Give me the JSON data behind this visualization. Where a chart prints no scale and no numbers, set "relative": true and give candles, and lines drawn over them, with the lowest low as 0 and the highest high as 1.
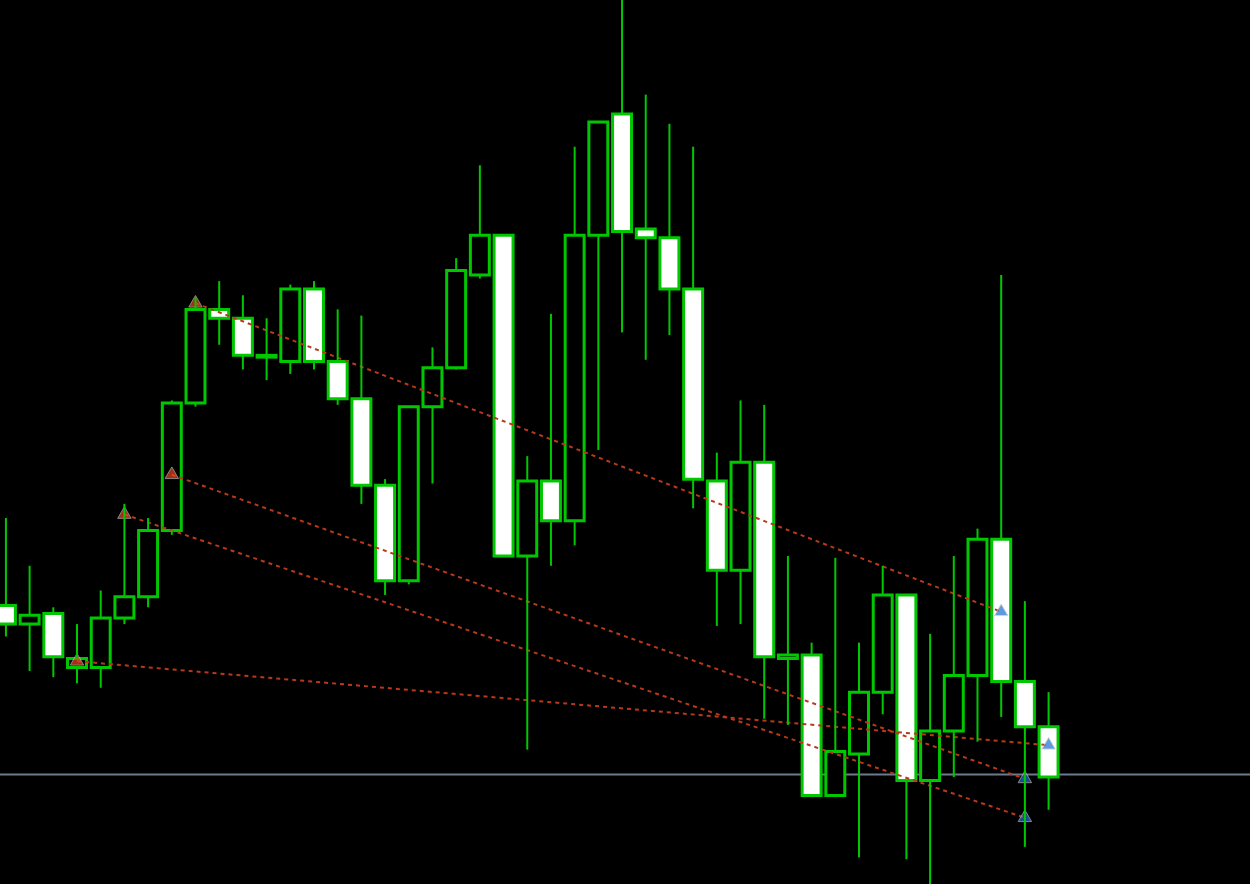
{
  "chart_data": {
    "type": "candlestick",
    "relative": true,
    "categories": [
      null,
      null,
      null,
      null,
      null,
      null,
      null,
      null,
      null,
      null,
      null,
      null,
      null,
      null,
      null,
      null,
      null,
      null,
      null,
      null,
      null,
      null,
      null,
      null,
      null,
      null,
      null,
      null,
      null,
      null,
      null,
      null,
      null,
      null,
      null,
      null,
      null,
      null,
      null,
      null,
      null,
      null,
      null,
      null,
      null
    ],
    "ohlc": [
      [
        0.315,
        0.414,
        0.28,
        0.294
      ],
      [
        0.294,
        0.36,
        0.241,
        0.304
      ],
      [
        0.306,
        0.313,
        0.234,
        0.257
      ],
      [
        0.245,
        0.294,
        0.227,
        0.255
      ],
      [
        0.245,
        0.332,
        0.222,
        0.301
      ],
      [
        0.301,
        0.43,
        0.294,
        0.325
      ],
      [
        0.325,
        0.414,
        0.313,
        0.4
      ],
      [
        0.4,
        0.547,
        0.395,
        0.544
      ],
      [
        0.544,
        0.664,
        0.54,
        0.65
      ],
      [
        0.65,
        0.682,
        0.61,
        0.64
      ],
      [
        0.64,
        0.666,
        0.582,
        0.598
      ],
      [
        0.596,
        0.64,
        0.57,
        0.598
      ],
      [
        0.591,
        0.678,
        0.577,
        0.673
      ],
      [
        0.673,
        0.682,
        0.582,
        0.591
      ],
      [
        0.591,
        0.65,
        0.542,
        0.549
      ],
      [
        0.549,
        0.643,
        0.43,
        0.451
      ],
      [
        0.451,
        0.458,
        0.327,
        0.343
      ],
      [
        0.343,
        0.54,
        0.339,
        0.54
      ],
      [
        0.54,
        0.607,
        0.453,
        0.584
      ],
      [
        0.584,
        0.708,
        0.582,
        0.694
      ],
      [
        0.689,
        0.813,
        0.685,
        0.734
      ],
      [
        0.734,
        0.734,
        0.371,
        0.371
      ],
      [
        0.371,
        0.484,
        0.152,
        0.456
      ],
      [
        0.456,
        0.645,
        0.36,
        0.411
      ],
      [
        0.411,
        0.834,
        0.383,
        0.734
      ],
      [
        0.734,
        0.862,
        0.491,
        0.862
      ],
      [
        0.871,
        1.0,
        0.624,
        0.738
      ],
      [
        0.741,
        0.893,
        0.593,
        0.731
      ],
      [
        0.731,
        0.86,
        0.621,
        0.673
      ],
      [
        0.673,
        0.834,
        0.425,
        0.458
      ],
      [
        0.456,
        0.488,
        0.292,
        0.355
      ],
      [
        0.355,
        0.547,
        0.294,
        0.477
      ],
      [
        0.477,
        0.542,
        0.187,
        0.257
      ],
      [
        0.255,
        0.371,
        0.18,
        0.259
      ],
      [
        0.259,
        0.273,
        0.1,
        0.1
      ],
      [
        0.1,
        0.369,
        0.1,
        0.15
      ],
      [
        0.147,
        0.273,
        0.03,
        0.217
      ],
      [
        0.217,
        0.36,
        0.192,
        0.327
      ],
      [
        0.327,
        0.327,
        0.028,
        0.117
      ],
      [
        0.117,
        0.283,
        0.0,
        0.173
      ],
      [
        0.173,
        0.371,
        0.121,
        0.236
      ],
      [
        0.236,
        0.402,
        0.161,
        0.39
      ],
      [
        0.39,
        0.689,
        0.189,
        0.229
      ],
      [
        0.229,
        0.32,
        0.042,
        0.178
      ],
      [
        0.178,
        0.217,
        0.084,
        0.121
      ]
    ],
    "colors": [
      "#ffffff",
      "#000000",
      "#ffffff",
      "#000000",
      "#000000",
      "#000000",
      "#000000",
      "#000000",
      "#000000",
      "#ffffff",
      "#ffffff",
      "#000000",
      "#000000",
      "#ffffff",
      "#ffffff",
      "#ffffff",
      "#ffffff",
      "#000000",
      "#000000",
      "#000000",
      "#000000",
      "#ffffff",
      "#000000",
      "#ffffff",
      "#000000",
      "#000000",
      "#ffffff",
      "#ffffff",
      "#ffffff",
      "#ffffff",
      "#ffffff",
      "#000000",
      "#ffffff",
      "#000000",
      "#ffffff",
      "#000000",
      "#000000",
      "#000000",
      "#ffffff",
      "#000000",
      "#000000",
      "#000000",
      "#ffffff",
      "#ffffff",
      "#ffffff"
    ],
    "ref_lines": [
      {
        "axis": "y",
        "value": 0.124,
        "color": "#6b7b8c"
      }
    ],
    "series": [
      {
        "type": "line",
        "color": "#b8391a",
        "line_style": "dashed",
        "values": [
          null,
          null,
          null,
          null,
          null,
          null,
          null,
          null,
          0.657,
          null,
          null,
          null,
          null,
          null,
          null,
          null,
          null,
          null,
          null,
          null,
          null,
          null,
          null,
          null,
          null,
          null,
          null,
          null,
          null,
          null,
          null,
          null,
          null,
          null,
          null,
          null,
          null,
          null,
          null,
          null,
          null,
          null,
          0.308,
          null,
          null
        ]
      },
      {
        "type": "line",
        "color": "#b8391a",
        "line_style": "dashed",
        "values": [
          null,
          null,
          null,
          null,
          null,
          null,
          null,
          0.463,
          null,
          null,
          null,
          null,
          null,
          null,
          null,
          null,
          null,
          null,
          null,
          null,
          null,
          null,
          null,
          null,
          null,
          null,
          null,
          null,
          null,
          null,
          null,
          null,
          null,
          null,
          null,
          null,
          null,
          null,
          null,
          null,
          null,
          null,
          null,
          0.119,
          null
        ]
      },
      {
        "type": "line",
        "color": "#b8391a",
        "line_style": "dashed",
        "values": [
          null,
          null,
          null,
          null,
          null,
          0.418,
          null,
          null,
          null,
          null,
          null,
          null,
          null,
          null,
          null,
          null,
          null,
          null,
          null,
          null,
          null,
          null,
          null,
          null,
          null,
          null,
          null,
          null,
          null,
          null,
          null,
          null,
          null,
          null,
          null,
          null,
          null,
          null,
          null,
          null,
          null,
          null,
          null,
          0.075,
          null
        ]
      },
      {
        "type": "line",
        "color": "#b8391a",
        "line_style": "dashed",
        "values": [
          null,
          null,
          null,
          0.252,
          null,
          null,
          null,
          null,
          null,
          null,
          null,
          null,
          null,
          null,
          null,
          null,
          null,
          null,
          null,
          null,
          null,
          null,
          null,
          null,
          null,
          null,
          null,
          null,
          null,
          null,
          null,
          null,
          null,
          null,
          null,
          null,
          null,
          null,
          null,
          null,
          null,
          null,
          null,
          null,
          0.157
        ]
      },
      {
        "type": "scatter",
        "color": "#e8451e",
        "marker": "triangle",
        "values": [
          null,
          null,
          null,
          0.252,
          null,
          0.418,
          null,
          0.463,
          0.657,
          null,
          null,
          null,
          null,
          null,
          null,
          null,
          null,
          null,
          null,
          null,
          null,
          null,
          null,
          null,
          null,
          null,
          null,
          null,
          null,
          null,
          null,
          null,
          null,
          null,
          null,
          null,
          null,
          null,
          null,
          null,
          null,
          null,
          null,
          null,
          null
        ]
      },
      {
        "type": "scatter",
        "color": "#1f6fd1",
        "marker": "triangle",
        "values": [
          null,
          null,
          null,
          null,
          null,
          null,
          null,
          null,
          null,
          null,
          null,
          null,
          null,
          null,
          null,
          null,
          null,
          null,
          null,
          null,
          null,
          null,
          null,
          null,
          null,
          null,
          null,
          null,
          null,
          null,
          null,
          null,
          null,
          null,
          null,
          null,
          null,
          null,
          null,
          null,
          null,
          null,
          0.308,
          0.119,
          0.157
        ]
      },
      {
        "type": "scatter",
        "color": "#1f6fd1",
        "marker": "triangle",
        "values": [
          null,
          null,
          null,
          null,
          null,
          null,
          null,
          null,
          null,
          null,
          null,
          null,
          null,
          null,
          null,
          null,
          null,
          null,
          null,
          null,
          null,
          null,
          null,
          null,
          null,
          null,
          null,
          null,
          null,
          null,
          null,
          null,
          null,
          null,
          null,
          null,
          null,
          null,
          null,
          null,
          null,
          null,
          null,
          0.075,
          null
        ]
      }
    ]
  }
}
